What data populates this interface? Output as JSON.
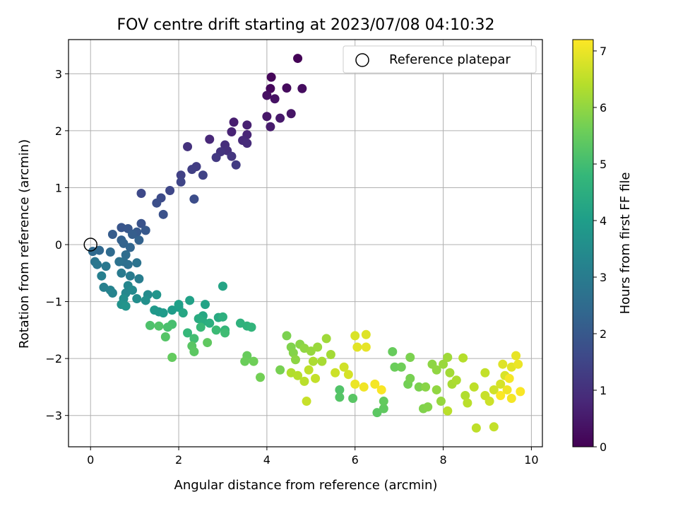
{
  "chart_data": {
    "type": "scatter",
    "title": "FOV centre drift starting at 2023/07/08 04:10:32",
    "xlabel": "Angular distance from reference (arcmin)",
    "ylabel": "Rotation from reference (arcmin)",
    "xlim": [
      -0.5,
      10.25
    ],
    "ylim": [
      -3.55,
      3.6
    ],
    "x_ticks": [
      0,
      2,
      4,
      6,
      8,
      10
    ],
    "y_ticks": [
      -3,
      -2,
      -1,
      0,
      1,
      2,
      3
    ],
    "x_tick_labels": [
      "0",
      "2",
      "4",
      "6",
      "8",
      "10"
    ],
    "y_tick_labels": [
      "−3",
      "−2",
      "−1",
      "0",
      "1",
      "2",
      "3"
    ],
    "grid": true,
    "legend": {
      "placement": "top-right",
      "entries": [
        "Reference platepar"
      ]
    },
    "reference_point": {
      "x": 0,
      "y": 0,
      "label": "Reference platepar"
    },
    "colorbar": {
      "label": "Hours from first FF file",
      "range": [
        0,
        7.2
      ],
      "ticks": [
        0,
        1,
        2,
        3,
        4,
        5,
        6,
        7
      ],
      "tick_labels": [
        "0",
        "1",
        "2",
        "3",
        "4",
        "5",
        "6",
        "7"
      ],
      "colormap": "viridis"
    },
    "points": [
      [
        4.7,
        3.27,
        0.05
      ],
      [
        4.1,
        2.94,
        0.1
      ],
      [
        4.08,
        2.74,
        0.15
      ],
      [
        4.45,
        2.75,
        0.2
      ],
      [
        4.8,
        2.74,
        0.25
      ],
      [
        4.0,
        2.62,
        0.3
      ],
      [
        4.18,
        2.56,
        0.35
      ],
      [
        4.55,
        2.3,
        0.4
      ],
      [
        4.0,
        2.25,
        0.45
      ],
      [
        4.3,
        2.22,
        0.5
      ],
      [
        4.08,
        2.07,
        0.55
      ],
      [
        3.25,
        2.15,
        0.6
      ],
      [
        3.55,
        2.1,
        0.65
      ],
      [
        3.2,
        1.98,
        0.7
      ],
      [
        3.55,
        1.93,
        0.75
      ],
      [
        2.7,
        1.85,
        0.8
      ],
      [
        3.45,
        1.83,
        0.85
      ],
      [
        3.55,
        1.78,
        0.9
      ],
      [
        3.05,
        1.75,
        0.95
      ],
      [
        3.1,
        1.65,
        1.0
      ],
      [
        2.2,
        1.72,
        1.05
      ],
      [
        2.95,
        1.63,
        1.1
      ],
      [
        3.2,
        1.55,
        1.15
      ],
      [
        2.85,
        1.53,
        1.2
      ],
      [
        3.3,
        1.4,
        1.25
      ],
      [
        2.4,
        1.37,
        1.3
      ],
      [
        2.3,
        1.32,
        1.35
      ],
      [
        2.05,
        1.22,
        1.4
      ],
      [
        2.55,
        1.22,
        1.45
      ],
      [
        2.05,
        1.1,
        1.5
      ],
      [
        1.8,
        0.95,
        1.55
      ],
      [
        1.15,
        0.9,
        1.6
      ],
      [
        1.6,
        0.82,
        1.65
      ],
      [
        2.35,
        0.8,
        1.7
      ],
      [
        1.5,
        0.73,
        1.75
      ],
      [
        1.65,
        0.53,
        1.8
      ],
      [
        1.15,
        0.37,
        1.85
      ],
      [
        0.7,
        0.3,
        1.9
      ],
      [
        0.85,
        0.28,
        1.95
      ],
      [
        1.25,
        0.25,
        2.0
      ],
      [
        1.05,
        0.22,
        2.05
      ],
      [
        0.5,
        0.18,
        2.1
      ],
      [
        0.95,
        0.18,
        2.15
      ],
      [
        0.7,
        0.08,
        2.2
      ],
      [
        1.1,
        0.08,
        2.25
      ],
      [
        0.75,
        0.02,
        2.3
      ],
      [
        0.9,
        -0.05,
        2.35
      ],
      [
        0.2,
        -0.1,
        2.4
      ],
      [
        0.05,
        -0.12,
        2.45
      ],
      [
        0.45,
        -0.13,
        2.5
      ],
      [
        0.8,
        -0.18,
        2.55
      ],
      [
        0.75,
        -0.3,
        2.6
      ],
      [
        0.85,
        -0.35,
        2.65
      ],
      [
        0.65,
        -0.3,
        2.7
      ],
      [
        1.05,
        -0.32,
        2.75
      ],
      [
        0.1,
        -0.3,
        2.8
      ],
      [
        0.15,
        -0.35,
        2.85
      ],
      [
        0.35,
        -0.38,
        2.9
      ],
      [
        0.7,
        -0.5,
        2.95
      ],
      [
        0.9,
        -0.55,
        3.0
      ],
      [
        1.1,
        -0.6,
        3.05
      ],
      [
        0.25,
        -0.55,
        3.1
      ],
      [
        0.3,
        -0.75,
        3.15
      ],
      [
        0.45,
        -0.8,
        3.2
      ],
      [
        0.5,
        -0.85,
        3.25
      ],
      [
        0.85,
        -0.72,
        3.3
      ],
      [
        0.8,
        -0.85,
        3.35
      ],
      [
        0.95,
        -0.8,
        3.4
      ],
      [
        1.3,
        -0.88,
        3.45
      ],
      [
        1.05,
        -0.95,
        3.5
      ],
      [
        0.75,
        -0.95,
        3.55
      ],
      [
        1.25,
        -0.98,
        3.6
      ],
      [
        0.7,
        -1.05,
        3.65
      ],
      [
        0.8,
        -1.08,
        3.7
      ],
      [
        1.5,
        -0.88,
        3.75
      ],
      [
        1.55,
        -1.18,
        3.8
      ],
      [
        1.45,
        -1.15,
        3.85
      ],
      [
        1.65,
        -1.2,
        3.9
      ],
      [
        1.85,
        -1.15,
        3.95
      ],
      [
        2.0,
        -1.1,
        4.0
      ],
      [
        2.0,
        -1.05,
        4.05
      ],
      [
        2.25,
        -0.98,
        4.1
      ],
      [
        2.6,
        -1.05,
        4.15
      ],
      [
        3.0,
        -0.73,
        4.2
      ],
      [
        2.1,
        -1.2,
        4.25
      ],
      [
        2.55,
        -1.25,
        4.3
      ],
      [
        2.9,
        -1.28,
        4.35
      ],
      [
        2.45,
        -1.3,
        4.4
      ],
      [
        2.55,
        -1.35,
        4.45
      ],
      [
        2.7,
        -1.38,
        4.5
      ],
      [
        3.0,
        -1.27,
        4.55
      ],
      [
        3.4,
        -1.38,
        4.6
      ],
      [
        3.55,
        -1.43,
        4.65
      ],
      [
        3.65,
        -1.45,
        4.7
      ],
      [
        3.05,
        -1.5,
        4.75
      ],
      [
        2.2,
        -1.55,
        4.8
      ],
      [
        2.5,
        -1.45,
        4.85
      ],
      [
        2.85,
        -1.5,
        4.9
      ],
      [
        3.05,
        -1.55,
        4.95
      ],
      [
        2.35,
        -1.65,
        5.0
      ],
      [
        1.85,
        -1.4,
        5.05
      ],
      [
        1.75,
        -1.45,
        5.1
      ],
      [
        1.35,
        -1.42,
        5.15
      ],
      [
        1.55,
        -1.43,
        5.2
      ],
      [
        1.7,
        -1.62,
        5.25
      ],
      [
        2.3,
        -1.78,
        5.3
      ],
      [
        2.35,
        -1.88,
        5.35
      ],
      [
        2.65,
        -1.72,
        5.4
      ],
      [
        1.85,
        -1.98,
        5.45
      ],
      [
        3.55,
        -1.95,
        5.5
      ],
      [
        3.5,
        -2.05,
        5.55
      ],
      [
        3.7,
        -2.05,
        5.6
      ],
      [
        3.85,
        -2.33,
        5.65
      ],
      [
        4.3,
        -2.2,
        5.7
      ],
      [
        4.45,
        -1.6,
        5.75
      ],
      [
        4.55,
        -1.8,
        5.8
      ],
      [
        4.6,
        -1.9,
        5.85
      ],
      [
        4.75,
        -1.75,
        5.9
      ],
      [
        4.65,
        -2.02,
        5.95
      ],
      [
        4.85,
        -1.82,
        6.0
      ],
      [
        5.0,
        -1.87,
        6.05
      ],
      [
        5.15,
        -1.8,
        6.1
      ],
      [
        5.35,
        -1.65,
        6.15
      ],
      [
        5.45,
        -1.93,
        6.2
      ],
      [
        5.25,
        -2.05,
        6.25
      ],
      [
        5.05,
        -2.05,
        6.3
      ],
      [
        4.55,
        -2.25,
        6.35
      ],
      [
        4.7,
        -2.3,
        6.4
      ],
      [
        4.85,
        -2.4,
        6.45
      ],
      [
        4.95,
        -2.2,
        6.5
      ],
      [
        5.1,
        -2.35,
        6.55
      ],
      [
        4.9,
        -2.75,
        6.6
      ],
      [
        5.55,
        -2.25,
        6.65
      ],
      [
        5.75,
        -2.15,
        6.7
      ],
      [
        5.85,
        -2.28,
        6.75
      ],
      [
        6.0,
        -1.6,
        6.8
      ],
      [
        6.25,
        -1.58,
        6.85
      ],
      [
        6.05,
        -1.8,
        6.9
      ],
      [
        6.25,
        -1.8,
        6.95
      ],
      [
        6.0,
        -2.45,
        7.0
      ],
      [
        6.2,
        -2.5,
        7.05
      ],
      [
        6.45,
        -2.45,
        7.1
      ],
      [
        6.6,
        -2.55,
        7.15
      ],
      [
        5.65,
        -2.55,
        5.2
      ],
      [
        5.65,
        -2.68,
        5.25
      ],
      [
        5.95,
        -2.7,
        5.3
      ],
      [
        6.5,
        -2.95,
        5.35
      ],
      [
        6.65,
        -2.88,
        5.4
      ],
      [
        6.65,
        -2.75,
        5.45
      ],
      [
        6.85,
        -1.88,
        5.5
      ],
      [
        6.9,
        -2.15,
        5.55
      ],
      [
        7.05,
        -2.15,
        5.6
      ],
      [
        7.2,
        -2.45,
        5.65
      ],
      [
        7.25,
        -2.35,
        5.7
      ],
      [
        7.45,
        -2.5,
        5.75
      ],
      [
        7.55,
        -2.88,
        5.8
      ],
      [
        7.65,
        -2.85,
        5.85
      ],
      [
        7.6,
        -2.5,
        5.9
      ],
      [
        7.75,
        -2.1,
        5.95
      ],
      [
        7.85,
        -2.55,
        6.0
      ],
      [
        7.95,
        -2.75,
        6.05
      ],
      [
        8.0,
        -2.1,
        6.1
      ],
      [
        8.1,
        -1.98,
        6.15
      ],
      [
        8.15,
        -2.25,
        6.2
      ],
      [
        8.2,
        -2.45,
        6.25
      ],
      [
        8.3,
        -2.38,
        6.3
      ],
      [
        8.5,
        -2.65,
        6.35
      ],
      [
        8.45,
        -1.99,
        6.4
      ],
      [
        8.1,
        -2.92,
        6.45
      ],
      [
        8.75,
        -3.22,
        6.5
      ],
      [
        9.15,
        -3.2,
        6.55
      ],
      [
        8.95,
        -2.65,
        6.6
      ],
      [
        9.05,
        -2.75,
        6.65
      ],
      [
        9.15,
        -2.55,
        6.7
      ],
      [
        9.3,
        -2.45,
        6.75
      ],
      [
        9.4,
        -2.3,
        6.8
      ],
      [
        9.35,
        -2.1,
        6.85
      ],
      [
        9.55,
        -2.15,
        6.9
      ],
      [
        9.65,
        -1.95,
        6.95
      ],
      [
        9.7,
        -2.1,
        7.0
      ],
      [
        9.45,
        -2.55,
        7.05
      ],
      [
        9.55,
        -2.7,
        7.1
      ],
      [
        9.75,
        -2.58,
        7.15
      ],
      [
        9.3,
        -2.65,
        7.18
      ],
      [
        9.5,
        -2.35,
        7.12
      ],
      [
        8.95,
        -2.25,
        6.55
      ],
      [
        8.7,
        -2.5,
        6.5
      ],
      [
        8.55,
        -2.78,
        6.45
      ],
      [
        7.85,
        -2.2,
        6.0
      ],
      [
        7.25,
        -1.98,
        5.75
      ]
    ]
  }
}
